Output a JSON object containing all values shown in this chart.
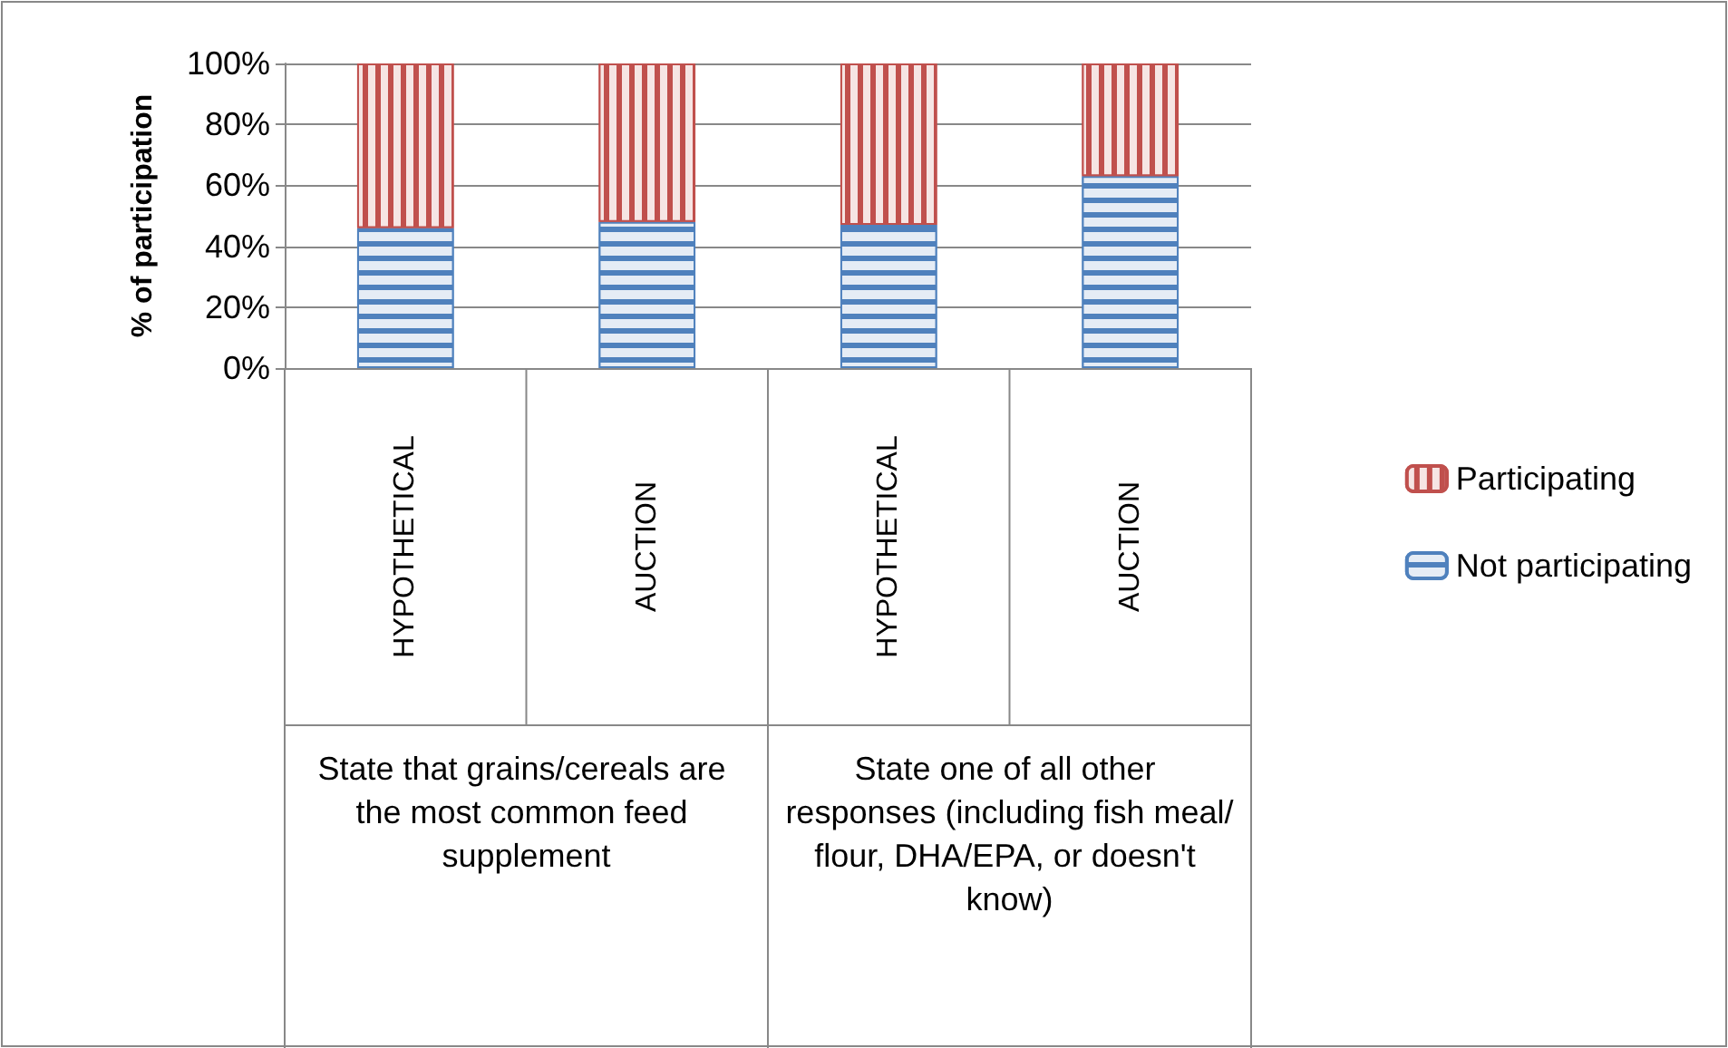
{
  "chart_data": {
    "type": "bar",
    "stacked": true,
    "ylabel": "% of participation",
    "categories": [
      "HYPOTHETICAL",
      "AUCTION",
      "HYPOTHETICAL",
      "AUCTION"
    ],
    "series": [
      {
        "name": "Not participating",
        "color": "#4f81bd",
        "values": [
          46,
          48,
          47,
          63
        ]
      },
      {
        "name": "Participating",
        "color": "#c0504d",
        "values": [
          54,
          52,
          53,
          37
        ]
      }
    ],
    "ylim": [
      0,
      100
    ],
    "yticks": [
      {
        "value": 0,
        "label": "0%"
      },
      {
        "value": 20,
        "label": "20%"
      },
      {
        "value": 40,
        "label": "40%"
      },
      {
        "value": 60,
        "label": "60%"
      },
      {
        "value": 80,
        "label": "80%"
      },
      {
        "value": 100,
        "label": "100%"
      }
    ],
    "grid": "y",
    "legend": "right",
    "annotations": [
      "State that grains/cereals are the most common feed supplement",
      "State one of all other responses (including fish meal/flour, DHA/EPA, or doesn't know)"
    ]
  }
}
